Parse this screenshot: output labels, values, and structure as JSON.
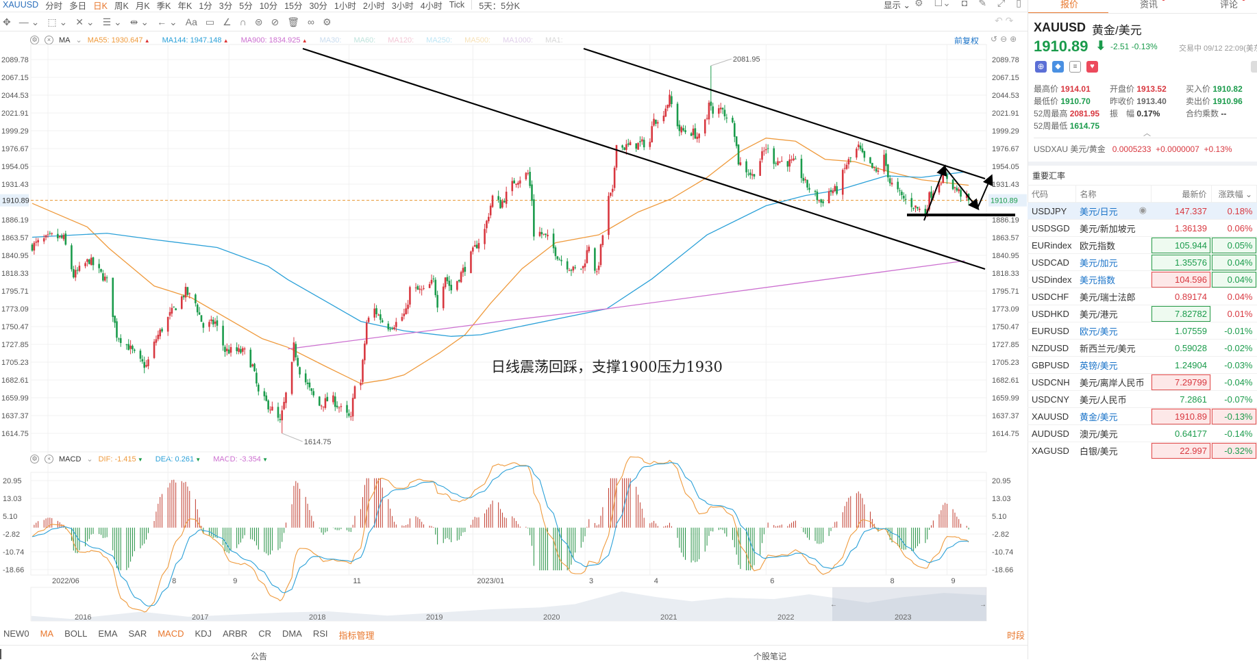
{
  "toolbar": {
    "symbol": "XAUUSD",
    "periods": [
      {
        "label": "分时"
      },
      {
        "label": "多日"
      },
      {
        "label": "日K",
        "active": true
      },
      {
        "label": "周K"
      },
      {
        "label": "月K"
      },
      {
        "label": "季K"
      },
      {
        "label": "年K"
      },
      {
        "label": "1分"
      },
      {
        "label": "3分"
      },
      {
        "label": "5分"
      },
      {
        "label": "10分"
      },
      {
        "label": "15分"
      },
      {
        "label": "30分"
      },
      {
        "label": "1小时"
      },
      {
        "label": "2小时"
      },
      {
        "label": "3小时"
      },
      {
        "label": "4小时"
      },
      {
        "label": "Tick"
      }
    ],
    "multi_day": "5天：5分K",
    "display": "显示",
    "draw_tools": [
      "move-icon",
      "line-icon",
      "rect-icon",
      "fib-icon",
      "channel-icon",
      "measure-icon",
      "arrow-icon",
      "text-icon",
      "note-icon",
      "angle-icon",
      "magnet-icon",
      "lock-icon",
      "hide-icon",
      "trash-icon",
      "link-icon",
      "settings-icon"
    ],
    "text_tool": "Aa",
    "adjust": "前复权"
  },
  "ma_legend": {
    "name": "MA",
    "items": [
      {
        "label": "MA55:",
        "value": "1930.647",
        "color": "#ef9a3c"
      },
      {
        "label": "MA144:",
        "value": "1947.148",
        "color": "#2aa0d8"
      },
      {
        "label": "MA900:",
        "value": "1834.925",
        "color": "#cc6fd0"
      },
      {
        "label": "MA30:",
        "value": "",
        "color": "#c9dcef"
      },
      {
        "label": "MA60:",
        "value": "",
        "color": "#bfe3dc"
      },
      {
        "label": "MA120:",
        "value": "",
        "color": "#f3c8d6"
      },
      {
        "label": "MA250:",
        "value": "",
        "color": "#bfe6f5"
      },
      {
        "label": "MA500:",
        "value": "",
        "color": "#f7e2b8"
      },
      {
        "label": "MA1000:",
        "value": "",
        "color": "#e0d0ea"
      },
      {
        "label": "MA1:",
        "value": "",
        "color": "#d8d8d8"
      }
    ]
  },
  "macd_legend": {
    "name": "MACD",
    "items": [
      {
        "label": "DIF:",
        "value": "-1.415",
        "color": "#ef9a3c"
      },
      {
        "label": "DEA:",
        "value": "0.261",
        "color": "#2aa0d8"
      },
      {
        "label": "MACD:",
        "value": "-3.354",
        "color": "#cc6fd0"
      }
    ]
  },
  "annotation": "日线震荡回踩，支撑1900压力1930",
  "chart_data": {
    "type": "candlestick",
    "symbol": "XAUUSD",
    "price_ticks": [
      "2089.78",
      "2067.15",
      "2044.53",
      "2021.91",
      "1999.29",
      "1976.67",
      "1954.05",
      "1931.43",
      "1886.19",
      "1863.57",
      "1840.95",
      "1818.33",
      "1795.71",
      "1773.09",
      "1750.47",
      "1727.85",
      "1705.23",
      "1682.61",
      "1659.99",
      "1637.37",
      "1614.75"
    ],
    "current_price": "1910.89",
    "ylim": [
      1614.75,
      2089.78
    ],
    "xlim": [
      "2022-05-24",
      "2023-09-12"
    ],
    "max_label": {
      "value": "2081.95",
      "date": "2023-05-04"
    },
    "min_label": {
      "value": "1614.75",
      "date": "2022-09-28"
    },
    "date_ticks": [
      {
        "label": "2022/06",
        "date": "2022-06-01"
      },
      {
        "label": "8",
        "date": "2022-08-01"
      },
      {
        "label": "9",
        "date": "2022-09-01"
      },
      {
        "label": "11",
        "date": "2022-11-01"
      },
      {
        "label": "2023/01",
        "date": "2023-01-03"
      },
      {
        "label": "3",
        "date": "2023-03-01"
      },
      {
        "label": "4",
        "date": "2023-04-03"
      },
      {
        "label": "6",
        "date": "2023-06-01"
      },
      {
        "label": "8",
        "date": "2023-08-01"
      },
      {
        "label": "9",
        "date": "2023-09-01"
      }
    ],
    "close_path": [
      [
        "2022-05-24",
        1853
      ],
      [
        "2022-06-03",
        1865
      ],
      [
        "2022-06-09",
        1862
      ],
      [
        "2022-06-14",
        1815
      ],
      [
        "2022-06-22",
        1835
      ],
      [
        "2022-07-01",
        1808
      ],
      [
        "2022-07-06",
        1740
      ],
      [
        "2022-07-12",
        1725
      ],
      [
        "2022-07-18",
        1705
      ],
      [
        "2022-07-21",
        1700
      ],
      [
        "2022-07-26",
        1735
      ],
      [
        "2022-08-02",
        1765
      ],
      [
        "2022-08-10",
        1795
      ],
      [
        "2022-08-15",
        1780
      ],
      [
        "2022-08-19",
        1750
      ],
      [
        "2022-08-25",
        1756
      ],
      [
        "2022-08-30",
        1720
      ],
      [
        "2022-09-09",
        1718
      ],
      [
        "2022-09-13",
        1700
      ],
      [
        "2022-09-16",
        1665
      ],
      [
        "2022-09-23",
        1645
      ],
      [
        "2022-09-27",
        1628
      ],
      [
        "2022-10-03",
        1700
      ],
      [
        "2022-10-04",
        1725
      ],
      [
        "2022-10-07",
        1695
      ],
      [
        "2022-10-13",
        1665
      ],
      [
        "2022-10-17",
        1650
      ],
      [
        "2022-10-23",
        1660
      ],
      [
        "2022-10-28",
        1645
      ],
      [
        "2022-11-02",
        1632
      ],
      [
        "2022-11-04",
        1680
      ],
      [
        "2022-11-07",
        1678
      ],
      [
        "2022-11-10",
        1755
      ],
      [
        "2022-11-14",
        1772
      ],
      [
        "2022-11-20",
        1750
      ],
      [
        "2022-11-25",
        1755
      ],
      [
        "2022-11-30",
        1768
      ],
      [
        "2022-12-02",
        1798
      ],
      [
        "2022-12-09",
        1795
      ],
      [
        "2022-12-14",
        1808
      ],
      [
        "2022-12-16",
        1780
      ],
      [
        "2022-12-20",
        1815
      ],
      [
        "2022-12-23",
        1797
      ],
      [
        "2022-12-30",
        1826
      ],
      [
        "2023-01-04",
        1850
      ],
      [
        "2023-01-09",
        1873
      ],
      [
        "2023-01-13",
        1915
      ],
      [
        "2023-01-17",
        1905
      ],
      [
        "2023-01-24",
        1935
      ],
      [
        "2023-01-31",
        1945
      ],
      [
        "2023-02-02",
        1912
      ],
      [
        "2023-02-03",
        1868
      ],
      [
        "2023-02-06",
        1870
      ],
      [
        "2023-02-10",
        1862
      ],
      [
        "2023-02-16",
        1837
      ],
      [
        "2023-02-23",
        1822
      ],
      [
        "2023-02-28",
        1826
      ],
      [
        "2023-03-03",
        1855
      ],
      [
        "2023-03-07",
        1815
      ],
      [
        "2023-03-10",
        1867
      ],
      [
        "2023-03-13",
        1913
      ],
      [
        "2023-03-15",
        1920
      ],
      [
        "2023-03-17",
        1987
      ],
      [
        "2023-03-20",
        1978
      ],
      [
        "2023-03-24",
        1980
      ],
      [
        "2023-04-03",
        1985
      ],
      [
        "2023-04-05",
        2020
      ],
      [
        "2023-04-07",
        2008
      ],
      [
        "2023-04-13",
        2040
      ],
      [
        "2023-04-18",
        2000
      ],
      [
        "2023-04-25",
        1997
      ],
      [
        "2023-04-28",
        1990
      ],
      [
        "2023-05-02",
        2016
      ],
      [
        "2023-05-03",
        2040
      ],
      [
        "2023-05-05",
        2018
      ],
      [
        "2023-05-10",
        2030
      ],
      [
        "2023-05-12",
        2012
      ],
      [
        "2023-05-15",
        2016
      ],
      [
        "2023-05-18",
        1960
      ],
      [
        "2023-05-25",
        1942
      ],
      [
        "2023-06-01",
        1978
      ],
      [
        "2023-06-05",
        1962
      ],
      [
        "2023-06-12",
        1959
      ],
      [
        "2023-06-16",
        1958
      ],
      [
        "2023-06-21",
        1932
      ],
      [
        "2023-06-29",
        1908
      ],
      [
        "2023-07-03",
        1922
      ],
      [
        "2023-07-07",
        1924
      ],
      [
        "2023-07-12",
        1957
      ],
      [
        "2023-07-18",
        1978
      ],
      [
        "2023-07-21",
        1962
      ],
      [
        "2023-07-27",
        1946
      ],
      [
        "2023-07-31",
        1965
      ],
      [
        "2023-08-03",
        1934
      ],
      [
        "2023-08-09",
        1915
      ],
      [
        "2023-08-16",
        1902
      ],
      [
        "2023-08-21",
        1895
      ],
      [
        "2023-08-23",
        1916
      ],
      [
        "2023-08-29",
        1938
      ],
      [
        "2023-09-01",
        1940
      ],
      [
        "2023-09-05",
        1926
      ],
      [
        "2023-09-12",
        1911
      ]
    ],
    "ma55": [
      [
        "2022-05-24",
        1907
      ],
      [
        "2022-06-21",
        1877
      ],
      [
        "2022-07-02",
        1850
      ],
      [
        "2022-07-25",
        1802
      ],
      [
        "2022-08-13",
        1787
      ],
      [
        "2022-09-18",
        1735
      ],
      [
        "2022-10-01",
        1724
      ],
      [
        "2022-10-20",
        1700
      ],
      [
        "2022-11-07",
        1678
      ],
      [
        "2022-11-20",
        1683
      ],
      [
        "2022-11-29",
        1689
      ],
      [
        "2022-12-17",
        1717
      ],
      [
        "2022-12-30",
        1740
      ],
      [
        "2023-01-12",
        1780
      ],
      [
        "2023-01-28",
        1824
      ],
      [
        "2023-02-14",
        1857
      ],
      [
        "2023-03-08",
        1867
      ],
      [
        "2023-03-28",
        1896
      ],
      [
        "2023-04-14",
        1913
      ],
      [
        "2023-05-02",
        1940
      ],
      [
        "2023-05-19",
        1973
      ],
      [
        "2023-06-01",
        1990
      ],
      [
        "2023-06-16",
        1986
      ],
      [
        "2023-07-01",
        1963
      ],
      [
        "2023-07-16",
        1960
      ],
      [
        "2023-08-03",
        1947
      ],
      [
        "2023-08-19",
        1937
      ],
      [
        "2023-09-12",
        1930
      ]
    ],
    "ma144": [
      [
        "2022-05-24",
        1864
      ],
      [
        "2022-07-01",
        1869
      ],
      [
        "2022-07-25",
        1861
      ],
      [
        "2022-08-26",
        1851
      ],
      [
        "2022-09-21",
        1827
      ],
      [
        "2022-10-01",
        1810
      ],
      [
        "2022-10-22",
        1780
      ],
      [
        "2022-11-07",
        1757
      ],
      [
        "2022-11-29",
        1745
      ],
      [
        "2022-12-23",
        1738
      ],
      [
        "2023-01-07",
        1740
      ],
      [
        "2023-01-20",
        1747
      ],
      [
        "2023-03-12",
        1773
      ],
      [
        "2023-04-04",
        1811
      ],
      [
        "2023-05-02",
        1867
      ],
      [
        "2023-06-01",
        1904
      ],
      [
        "2023-06-21",
        1917
      ],
      [
        "2023-07-08",
        1924
      ],
      [
        "2023-08-01",
        1942
      ],
      [
        "2023-08-19",
        1940
      ],
      [
        "2023-09-10",
        1947
      ]
    ],
    "ma900": [
      [
        "2022-10-01",
        1722
      ],
      [
        "2023-01-20",
        1758
      ],
      [
        "2023-03-12",
        1773
      ],
      [
        "2023-09-10",
        1834
      ]
    ],
    "macd_ticks": [
      "20.95",
      "13.03",
      "5.10",
      "-2.82",
      "-10.74",
      "-18.66"
    ],
    "navigator": {
      "years": [
        "2016",
        "2017",
        "2018",
        "2019",
        "2020",
        "2021",
        "2022",
        "2023"
      ],
      "path": [
        [
          2015.56,
          1180
        ],
        [
          2015.9,
          1070
        ],
        [
          2016.5,
          1330
        ],
        [
          2016.9,
          1150
        ],
        [
          2017.7,
          1300
        ],
        [
          2018.1,
          1340
        ],
        [
          2018.6,
          1190
        ],
        [
          2019.0,
          1290
        ],
        [
          2019.5,
          1420
        ],
        [
          2019.9,
          1480
        ],
        [
          2020.2,
          1600
        ],
        [
          2020.6,
          2050
        ],
        [
          2020.9,
          1850
        ],
        [
          2021.2,
          1700
        ],
        [
          2021.5,
          1830
        ],
        [
          2021.9,
          1780
        ],
        [
          2022.2,
          1950
        ],
        [
          2022.7,
          1650
        ],
        [
          2023.0,
          1850
        ],
        [
          2023.35,
          2000
        ],
        [
          2023.71,
          1920
        ]
      ]
    }
  },
  "indicator_tabs": [
    {
      "label": "NEW0"
    },
    {
      "label": "MA",
      "active": true
    },
    {
      "label": "BOLL"
    },
    {
      "label": "EMA"
    },
    {
      "label": "SAR"
    },
    {
      "label": "MACD",
      "active": true
    },
    {
      "label": "KDJ"
    },
    {
      "label": "ARBR"
    },
    {
      "label": "CR"
    },
    {
      "label": "DMA"
    },
    {
      "label": "RSI"
    },
    {
      "label": "指标管理",
      "active": true
    }
  ],
  "period_button": "时段",
  "footer": {
    "notice": "公告",
    "notes": "个股笔记"
  },
  "right_panel": {
    "tabs": [
      {
        "label": "报价",
        "active": true
      },
      {
        "label": "资讯",
        "dot": true
      },
      {
        "label": "评论",
        "dot": true
      }
    ],
    "code": "XAUUSD",
    "name": "黄金/美元",
    "price": "1910.89",
    "change": "-2.51",
    "change_pct": "-0.13%",
    "status": "交易中 09/12 22:09(美东",
    "stats": [
      [
        {
          "k": "最高价",
          "v": "1914.01",
          "c": "red"
        },
        {
          "k": "开盘价",
          "v": "1913.52",
          "c": "red"
        },
        {
          "k": "买入价",
          "v": "1910.82",
          "c": "green"
        }
      ],
      [
        {
          "k": "最低价",
          "v": "1910.70",
          "c": "green"
        },
        {
          "k": "昨收价",
          "v": "1913.40",
          "c": "gray"
        },
        {
          "k": "卖出价",
          "v": "1910.96",
          "c": "green"
        }
      ],
      [
        {
          "k": "52周最高",
          "v": "2081.95",
          "c": "red"
        },
        {
          "k": "振　幅",
          "v": "0.17%",
          "c": "dark"
        },
        {
          "k": "合约乘数",
          "v": "--",
          "c": "dark"
        }
      ],
      [
        {
          "k": "52周最低",
          "v": "1614.75",
          "c": "green"
        }
      ]
    ],
    "inverse": {
      "code": "USDXAU",
      "name": "美元/黄金",
      "price": "0.0005233",
      "change": "+0.0000007",
      "pct": "+0.13%"
    },
    "rates_title": "重要汇率",
    "columns": [
      "代码",
      "名称",
      "最新价",
      "涨跌幅"
    ],
    "rows": [
      {
        "code": "USDJPY",
        "name": "美元/日元",
        "price": "147.337",
        "pct": "0.18%",
        "pc": "red",
        "cc": "red",
        "link": true,
        "selected": true
      },
      {
        "code": "USDSGD",
        "name": "美元/新加坡元",
        "price": "1.36139",
        "pct": "0.06%",
        "pc": "red",
        "cc": "red"
      },
      {
        "code": "EURindex",
        "name": "欧元指数",
        "price": "105.944",
        "pct": "0.05%",
        "pc": "green",
        "cc": "green",
        "ph": "g",
        "ch": "g"
      },
      {
        "code": "USDCAD",
        "name": "美元/加元",
        "price": "1.35576",
        "pct": "0.04%",
        "pc": "green",
        "cc": "green",
        "ph": "g",
        "ch": "g",
        "link": true
      },
      {
        "code": "USDindex",
        "name": "美元指数",
        "price": "104.596",
        "pct": "0.04%",
        "pc": "red",
        "cc": "green",
        "ph": "r",
        "ch": "g",
        "link": true
      },
      {
        "code": "USDCHF",
        "name": "美元/瑞士法郎",
        "price": "0.89174",
        "pct": "0.04%",
        "pc": "red",
        "cc": "red"
      },
      {
        "code": "USDHKD",
        "name": "美元/港元",
        "price": "7.82782",
        "pct": "0.01%",
        "pc": "green",
        "cc": "red",
        "ph": "g"
      },
      {
        "code": "EURUSD",
        "name": "欧元/美元",
        "price": "1.07559",
        "pct": "-0.01%",
        "pc": "green",
        "cc": "green",
        "link": true
      },
      {
        "code": "NZDUSD",
        "name": "新西兰元/美元",
        "price": "0.59028",
        "pct": "-0.02%",
        "pc": "green",
        "cc": "green"
      },
      {
        "code": "GBPUSD",
        "name": "英镑/美元",
        "price": "1.24904",
        "pct": "-0.03%",
        "pc": "green",
        "cc": "green",
        "link": true
      },
      {
        "code": "USDCNH",
        "name": "美元/离岸人民币",
        "price": "7.29799",
        "pct": "-0.04%",
        "pc": "red",
        "cc": "green",
        "ph": "r"
      },
      {
        "code": "USDCNY",
        "name": "美元/人民币",
        "price": "7.2861",
        "pct": "-0.07%",
        "pc": "green",
        "cc": "green"
      },
      {
        "code": "XAUUSD",
        "name": "黄金/美元",
        "price": "1910.89",
        "pct": "-0.13%",
        "pc": "red",
        "cc": "green",
        "ph": "r",
        "ch": "r",
        "link": true
      },
      {
        "code": "AUDUSD",
        "name": "澳元/美元",
        "price": "0.64177",
        "pct": "-0.14%",
        "pc": "green",
        "cc": "green"
      },
      {
        "code": "XAGUSD",
        "name": "白银/美元",
        "price": "22.997",
        "pct": "-0.32%",
        "pc": "red",
        "cc": "green",
        "ph": "r",
        "ch": "r"
      }
    ]
  },
  "colors": {
    "up": "#d8373f",
    "down": "#1a9b4b",
    "accent": "#e8762b",
    "ma55": "#ef9a3c",
    "ma144": "#2aa0d8",
    "ma900": "#cc6fd0"
  }
}
